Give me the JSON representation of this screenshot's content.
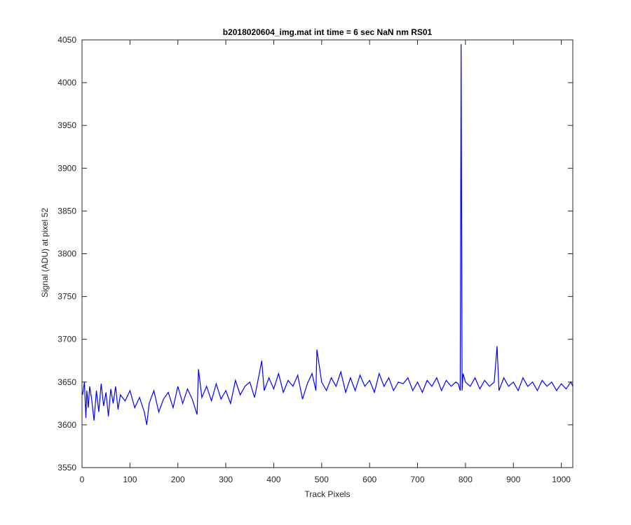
{
  "chart_data": {
    "type": "line",
    "title": "b2018020604_img.mat int time = 6 sec  NaN nm RS01",
    "xlabel": "Track Pixels",
    "ylabel": "Signal (ADU) at pixel 52",
    "xlim": [
      0,
      1024
    ],
    "ylim": [
      3550,
      4050
    ],
    "xticks": [
      0,
      100,
      200,
      300,
      400,
      500,
      600,
      700,
      800,
      900,
      1000
    ],
    "yticks": [
      3550,
      3600,
      3650,
      3700,
      3750,
      3800,
      3850,
      3900,
      3950,
      4000,
      4050
    ],
    "grid": false,
    "series": [
      {
        "color": "#0000ff",
        "x": [
          1,
          5,
          8,
          10,
          13,
          16,
          20,
          25,
          30,
          35,
          40,
          45,
          50,
          55,
          60,
          65,
          70,
          75,
          80,
          90,
          100,
          110,
          120,
          130,
          135,
          140,
          150,
          160,
          170,
          180,
          190,
          200,
          210,
          220,
          230,
          240,
          243,
          250,
          260,
          270,
          280,
          290,
          300,
          310,
          320,
          330,
          340,
          350,
          360,
          370,
          375,
          380,
          390,
          400,
          410,
          420,
          430,
          440,
          450,
          460,
          470,
          480,
          488,
          490,
          500,
          510,
          520,
          530,
          540,
          550,
          560,
          570,
          580,
          590,
          600,
          610,
          620,
          630,
          640,
          650,
          660,
          670,
          680,
          690,
          700,
          710,
          720,
          730,
          740,
          750,
          760,
          770,
          780,
          785,
          789,
          791,
          793,
          795,
          800,
          810,
          820,
          830,
          840,
          850,
          860,
          866,
          870,
          880,
          890,
          900,
          910,
          920,
          930,
          940,
          950,
          960,
          970,
          980,
          990,
          1000,
          1010,
          1020,
          1024
        ],
        "y": [
          3635,
          3650,
          3608,
          3640,
          3620,
          3645,
          3630,
          3605,
          3640,
          3615,
          3648,
          3622,
          3638,
          3610,
          3642,
          3625,
          3645,
          3618,
          3635,
          3628,
          3640,
          3620,
          3632,
          3615,
          3600,
          3625,
          3640,
          3615,
          3630,
          3638,
          3620,
          3645,
          3625,
          3642,
          3630,
          3612,
          3665,
          3632,
          3645,
          3628,
          3648,
          3630,
          3640,
          3625,
          3652,
          3635,
          3645,
          3650,
          3632,
          3660,
          3675,
          3640,
          3655,
          3642,
          3660,
          3638,
          3652,
          3645,
          3658,
          3630,
          3648,
          3660,
          3640,
          3688,
          3650,
          3640,
          3655,
          3645,
          3662,
          3638,
          3655,
          3640,
          3658,
          3645,
          3652,
          3638,
          3660,
          3645,
          3655,
          3640,
          3650,
          3648,
          3655,
          3640,
          3650,
          3638,
          3652,
          3645,
          3655,
          3640,
          3652,
          3645,
          3650,
          3648,
          3640,
          4045,
          3640,
          3660,
          3650,
          3645,
          3655,
          3642,
          3652,
          3645,
          3650,
          3692,
          3640,
          3655,
          3645,
          3650,
          3640,
          3655,
          3645,
          3650,
          3640,
          3652,
          3645,
          3650,
          3640,
          3648,
          3642,
          3650,
          3645
        ]
      }
    ]
  }
}
